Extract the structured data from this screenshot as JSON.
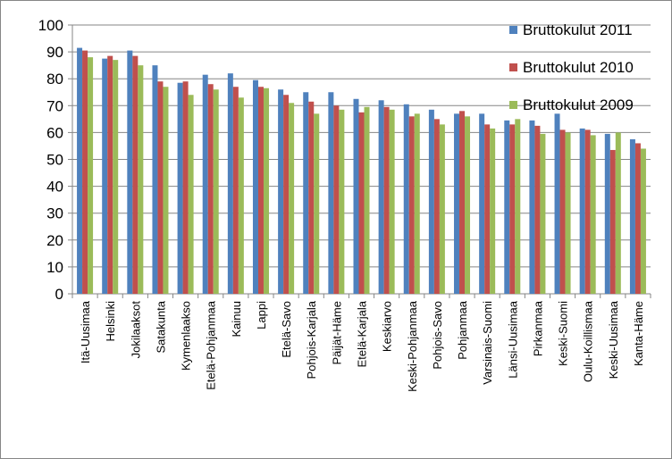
{
  "chart_data": {
    "type": "bar",
    "title": "",
    "xlabel": "",
    "ylabel": "",
    "ylim": [
      0,
      100
    ],
    "yticks": [
      0,
      10,
      20,
      30,
      40,
      50,
      60,
      70,
      80,
      90,
      100
    ],
    "grid": true,
    "legend_position": "right",
    "categories": [
      "Itä-Uusimaa",
      "Helsinki",
      "Jokilaaksot",
      "Satakunta",
      "Kymenlaakso",
      "Etelä-Pohjanmaa",
      "Kainuu",
      "Lappi",
      "Etelä-Savo",
      "Pohjois-Karjala",
      "Päijät-Häme",
      "Etelä-Karjala",
      "Keskiarvo",
      "Keski-Pohjanmaa",
      "Pohjois-Savo",
      "Pohjanmaa",
      "Varsinais-Suomi",
      "Länsi-Uusimaa",
      "Pirkanmaa",
      "Keski-Suomi",
      "Oulu-Koillismaa",
      "Keski-Uusimaa",
      "Kanta-Häme"
    ],
    "series": [
      {
        "name": "Bruttokulut 2011",
        "color": "#4F81BD",
        "values": [
          91.5,
          87.5,
          90.5,
          85,
          78.5,
          81.5,
          82,
          79.5,
          76,
          75,
          75,
          72.5,
          72,
          70.5,
          68.5,
          67,
          67,
          64.5,
          64.5,
          67,
          61.5,
          59.5,
          57.5
        ]
      },
      {
        "name": "Bruttokulut 2010",
        "color": "#C0504D",
        "values": [
          90.5,
          88.5,
          88.5,
          79,
          79,
          78,
          77,
          77,
          74,
          71.5,
          70,
          67.5,
          69.5,
          66,
          65,
          68,
          63,
          63,
          62.5,
          61,
          61,
          53.5,
          56
        ]
      },
      {
        "name": "Bruttokulut 2009",
        "color": "#9BBB59",
        "values": [
          88,
          87,
          85,
          77,
          74,
          76,
          73,
          76.5,
          71,
          67,
          68.5,
          69.5,
          68.5,
          67,
          63,
          66,
          61.5,
          65,
          59.5,
          60,
          59,
          60,
          54
        ]
      }
    ]
  }
}
